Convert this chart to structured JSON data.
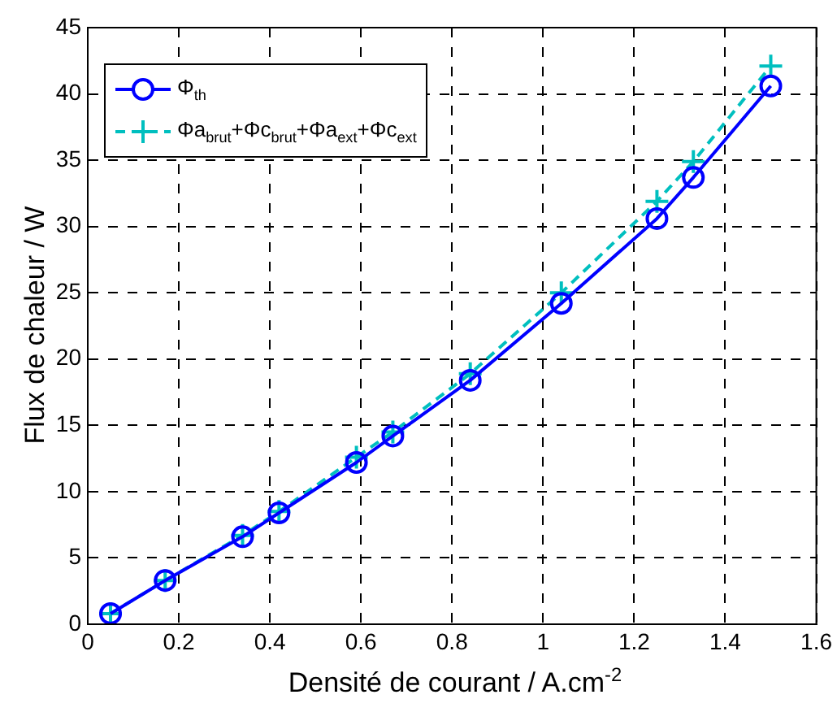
{
  "chart_data": {
    "type": "line",
    "xlabel": "Densité de courant / A.cm$^{-2}$",
    "ylabel": "Flux de chaleur / W",
    "x": [
      0.05,
      0.17,
      0.34,
      0.42,
      0.59,
      0.67,
      0.84,
      1.04,
      1.25,
      1.33,
      1.5
    ],
    "series": [
      {
        "name": "Φ$_{th}$",
        "color": "#0000ff",
        "marker": "circle",
        "line_style": "solid",
        "values": [
          0.8,
          3.3,
          6.6,
          8.4,
          12.2,
          14.2,
          18.4,
          24.2,
          30.6,
          33.7,
          40.6
        ]
      },
      {
        "name": "Φa$_{brut}$+Φc$_{brut}$+Φa$_{ext}$+Φc$_{ext}$",
        "color": "#00bfbf",
        "marker": "cross",
        "line_style": "dashed",
        "values": [
          0.8,
          3.3,
          6.7,
          8.5,
          12.6,
          14.5,
          18.9,
          25.0,
          31.9,
          34.9,
          42.1
        ]
      }
    ],
    "xlim": [
      0,
      1.6
    ],
    "xticks": [
      0,
      0.2,
      0.4,
      0.6,
      0.8,
      1,
      1.2,
      1.4,
      1.6
    ],
    "ylim": [
      0,
      45
    ],
    "yticks": [
      0,
      5,
      10,
      15,
      20,
      25,
      30,
      35,
      40,
      45
    ],
    "grid": true,
    "legend": "top left"
  }
}
